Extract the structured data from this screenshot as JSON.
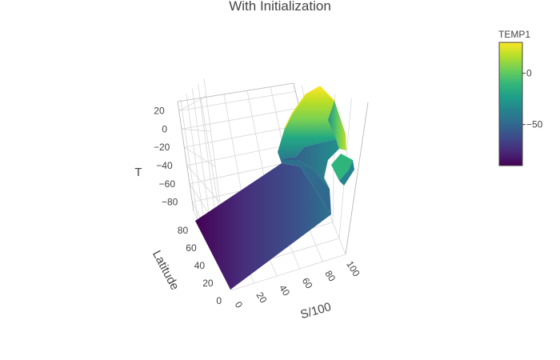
{
  "chart_data": {
    "type": "surface",
    "title": "With Initialization",
    "colorbar": {
      "title": "TEMP1",
      "colorscale": "viridis",
      "range": [
        -90,
        30
      ],
      "ticks": [
        0,
        -50
      ],
      "tick_labels": [
        "0",
        "−50"
      ],
      "colors": [
        "#440154",
        "#482878",
        "#3e4989",
        "#31688e",
        "#26828e",
        "#1f9e89",
        "#35b779",
        "#6ece58",
        "#b5de2b",
        "#fde725"
      ]
    },
    "axes": {
      "x": {
        "title": "S/100",
        "ticks": [
          0,
          20,
          40,
          60,
          80,
          100
        ],
        "tick_labels": [
          "0",
          "20",
          "40",
          "60",
          "80",
          "100"
        ],
        "range": [
          0,
          100
        ]
      },
      "y": {
        "title": "Latitude",
        "ticks": [
          0,
          20,
          40,
          60,
          80
        ],
        "tick_labels": [
          "0",
          "20",
          "40",
          "60",
          "80"
        ],
        "range": [
          0,
          90
        ]
      },
      "z": {
        "title": "T",
        "ticks": [
          20,
          0,
          -20,
          -40,
          -60,
          -80
        ],
        "tick_labels": [
          "20",
          "0",
          "−20",
          "−40",
          "−60",
          "−80"
        ],
        "range": [
          -90,
          30
        ]
      }
    },
    "grid": true,
    "surface_summary": {
      "x_grid": [
        0,
        20,
        40,
        60,
        80,
        90,
        100
      ],
      "y_grid": [
        0,
        20,
        40,
        60,
        80,
        90
      ],
      "z": [
        [
          -88,
          -84,
          -78,
          -70,
          -60,
          -54
        ],
        [
          -85,
          -80,
          -73,
          -64,
          -54,
          -48
        ],
        [
          -82,
          -76,
          -68,
          -59,
          -49,
          -43
        ],
        [
          -78,
          -72,
          -63,
          -54,
          -44,
          -38
        ],
        [
          -74,
          -66,
          -57,
          -48,
          -38,
          -32
        ],
        [
          -15,
          -10,
          -5,
          5,
          15,
          20
        ],
        [
          -40,
          -30,
          -20,
          5,
          20,
          28
        ]
      ]
    }
  }
}
